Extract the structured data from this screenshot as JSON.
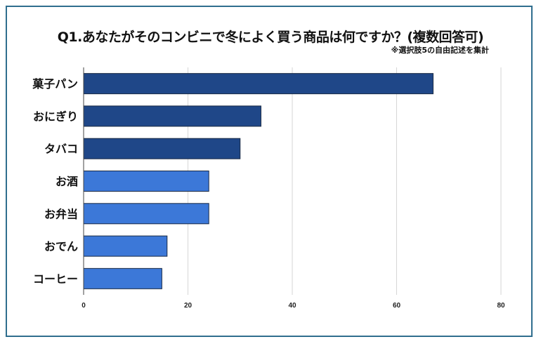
{
  "chart_data": {
    "type": "bar",
    "orientation": "horizontal",
    "title": "Q1.あなたがそのコンビニで冬によく買う商品は何ですか？(複数回答可)",
    "subtitle": "※選択肢5の自由記述を集計",
    "categories": [
      "菓子パン",
      "おにぎり",
      "タバコ",
      "お酒",
      "お弁当",
      "おでん",
      "コーヒー"
    ],
    "values": [
      67,
      34,
      30,
      24,
      24,
      16,
      15
    ],
    "xlim": [
      0,
      80
    ],
    "xticks": [
      "0",
      "20",
      "40",
      "60",
      "80"
    ],
    "grid": true,
    "colors": {
      "top3": "#1f4788",
      "others": "#3c78d8",
      "grid": "#d6d6d6",
      "frame": "#2f6e8e"
    }
  }
}
